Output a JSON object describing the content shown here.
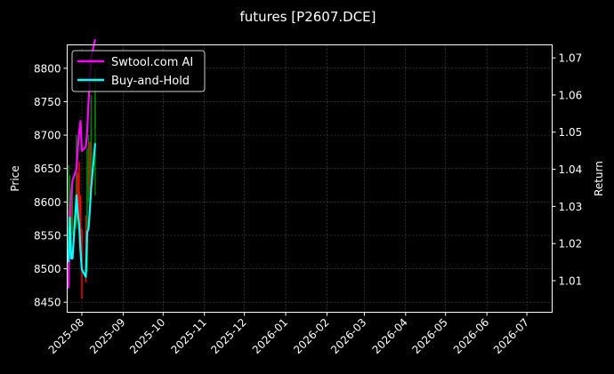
{
  "chart_data": {
    "type": "line",
    "title": "futures [P2607.DCE]",
    "ylabel": "Price",
    "y2label": "Return",
    "xlim": [
      "2025-07-21",
      "2026-07-20"
    ],
    "ylim": [
      8435,
      8835
    ],
    "y2lim": [
      1.0015,
      1.0735
    ],
    "grid": true,
    "legend_position": "top-left",
    "x_ticks": [
      "2025-08",
      "2025-09",
      "2025-10",
      "2025-11",
      "2025-12",
      "2026-01",
      "2026-02",
      "2026-03",
      "2026-04",
      "2026-05",
      "2026-06",
      "2026-07"
    ],
    "y_ticks": [
      8450,
      8500,
      8550,
      8600,
      8650,
      8700,
      8750,
      8800
    ],
    "y2_ticks": [
      1.01,
      1.02,
      1.03,
      1.04,
      1.05,
      1.06,
      1.07
    ],
    "candles": [
      {
        "date": "2025-07-22",
        "open": 8480,
        "high": 8655,
        "low": 8470,
        "close": 8560
      },
      {
        "date": "2025-07-23",
        "open": 8560,
        "high": 8640,
        "low": 8520,
        "close": 8600
      },
      {
        "date": "2025-07-24",
        "open": 8600,
        "high": 8610,
        "low": 8530,
        "close": 8560
      },
      {
        "date": "2025-07-25",
        "open": 8560,
        "high": 8630,
        "low": 8550,
        "close": 8565
      },
      {
        "date": "2025-07-28",
        "open": 8565,
        "high": 8700,
        "low": 8560,
        "close": 8640
      },
      {
        "date": "2025-07-29",
        "open": 8640,
        "high": 8645,
        "low": 8590,
        "close": 8615
      },
      {
        "date": "2025-07-30",
        "open": 8615,
        "high": 8660,
        "low": 8560,
        "close": 8600
      },
      {
        "date": "2025-07-31",
        "open": 8600,
        "high": 8610,
        "low": 8520,
        "close": 8550
      },
      {
        "date": "2025-08-01",
        "open": 8550,
        "high": 8560,
        "low": 8455,
        "close": 8510
      },
      {
        "date": "2025-08-04",
        "open": 8510,
        "high": 8580,
        "low": 8480,
        "close": 8500
      },
      {
        "date": "2025-08-05",
        "open": 8500,
        "high": 8680,
        "low": 8495,
        "close": 8650
      },
      {
        "date": "2025-08-06",
        "open": 8650,
        "high": 8700,
        "low": 8600,
        "close": 8660
      },
      {
        "date": "2025-08-07",
        "open": 8660,
        "high": 8690,
        "low": 8610,
        "close": 8640
      },
      {
        "date": "2025-08-08",
        "open": 8640,
        "high": 8760,
        "low": 8630,
        "close": 8710
      },
      {
        "date": "2025-08-11",
        "open": 8710,
        "high": 8800,
        "low": 8610,
        "close": 8760
      }
    ],
    "series": [
      {
        "name": "Swtool.com AI",
        "color": "#ff00ff",
        "values": [
          1.008,
          1.028,
          1.033,
          1.037,
          1.04,
          1.046,
          1.05,
          1.053,
          1.045,
          1.046,
          1.05,
          1.058,
          1.064,
          1.07,
          1.075
        ]
      },
      {
        "name": "Buy-and-Hold",
        "color": "#00ffff",
        "values": [
          1.015,
          1.027,
          1.016,
          1.016,
          1.033,
          1.028,
          1.025,
          1.018,
          1.013,
          1.011,
          1.023,
          1.024,
          1.029,
          1.035,
          1.047
        ]
      }
    ],
    "up_color": "#008000",
    "down_color": "#ff0000"
  }
}
